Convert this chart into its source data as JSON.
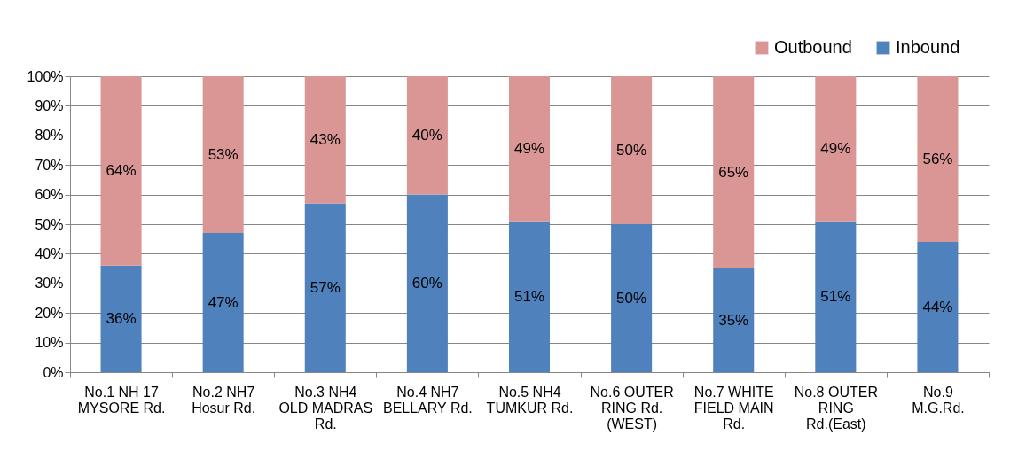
{
  "chart_data": {
    "type": "bar",
    "stacked": true,
    "categories": [
      "No.1 NH 17 MYSORE Rd.",
      "No.2 NH7 Hosur Rd.",
      "No.3 NH4 OLD MADRAS Rd.",
      "No.4 NH7 BELLARY Rd.",
      "No.5 NH4 TUMKUR Rd.",
      "No.6 OUTER RING Rd. (WEST)",
      "No.7 WHITE FIELD MAIN Rd.",
      "No.8 OUTER RING Rd.(East)",
      "No.9 M.G.Rd."
    ],
    "series": [
      {
        "name": "Inbound",
        "color": "#4f81bd",
        "values": [
          36,
          47,
          57,
          60,
          51,
          50,
          35,
          51,
          44
        ],
        "value_labels": [
          "36%",
          "47%",
          "57%",
          "60%",
          "51%",
          "50%",
          "35%",
          "51%",
          "44%"
        ]
      },
      {
        "name": "Outbound",
        "color": "#d99694",
        "values": [
          64,
          53,
          43,
          40,
          49,
          50,
          65,
          49,
          56
        ],
        "value_labels": [
          "64%",
          "53%",
          "43%",
          "40%",
          "49%",
          "50%",
          "65%",
          "49%",
          "56%"
        ]
      }
    ],
    "ylim": [
      0,
      100
    ],
    "yticks": [
      {
        "value": 0,
        "label": "0%"
      },
      {
        "value": 10,
        "label": "10%"
      },
      {
        "value": 20,
        "label": "20%"
      },
      {
        "value": 30,
        "label": "30%"
      },
      {
        "value": 40,
        "label": "40%"
      },
      {
        "value": 50,
        "label": "50%"
      },
      {
        "value": 60,
        "label": "60%"
      },
      {
        "value": 70,
        "label": "70%"
      },
      {
        "value": 80,
        "label": "80%"
      },
      {
        "value": 90,
        "label": "90%"
      },
      {
        "value": 100,
        "label": "100%"
      }
    ],
    "grid": "y",
    "legend": "top right"
  }
}
